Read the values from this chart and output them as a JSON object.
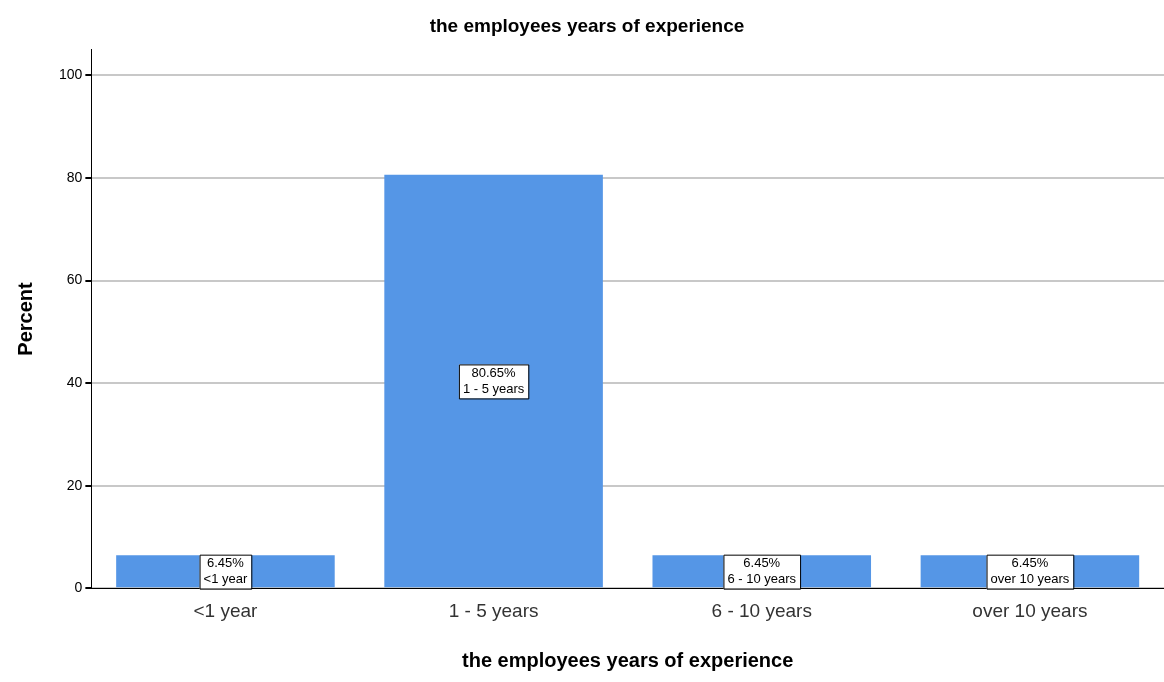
{
  "chart_data": {
    "type": "bar",
    "title": "the employees years of experience",
    "xlabel": "the employees years of experience",
    "ylabel": "Percent",
    "categories": [
      "<1 year",
      "1 - 5 years",
      "6 - 10 years",
      "over 10 years"
    ],
    "values": [
      6.45,
      80.65,
      6.45,
      6.45
    ],
    "value_labels": [
      "6.45%",
      "80.65%",
      "6.45%",
      "6.45%"
    ],
    "color": "#5596e6",
    "ylim": [
      0,
      105
    ],
    "yticks": [
      0,
      20,
      40,
      60,
      80,
      100
    ],
    "grid": "y",
    "legend": false
  }
}
